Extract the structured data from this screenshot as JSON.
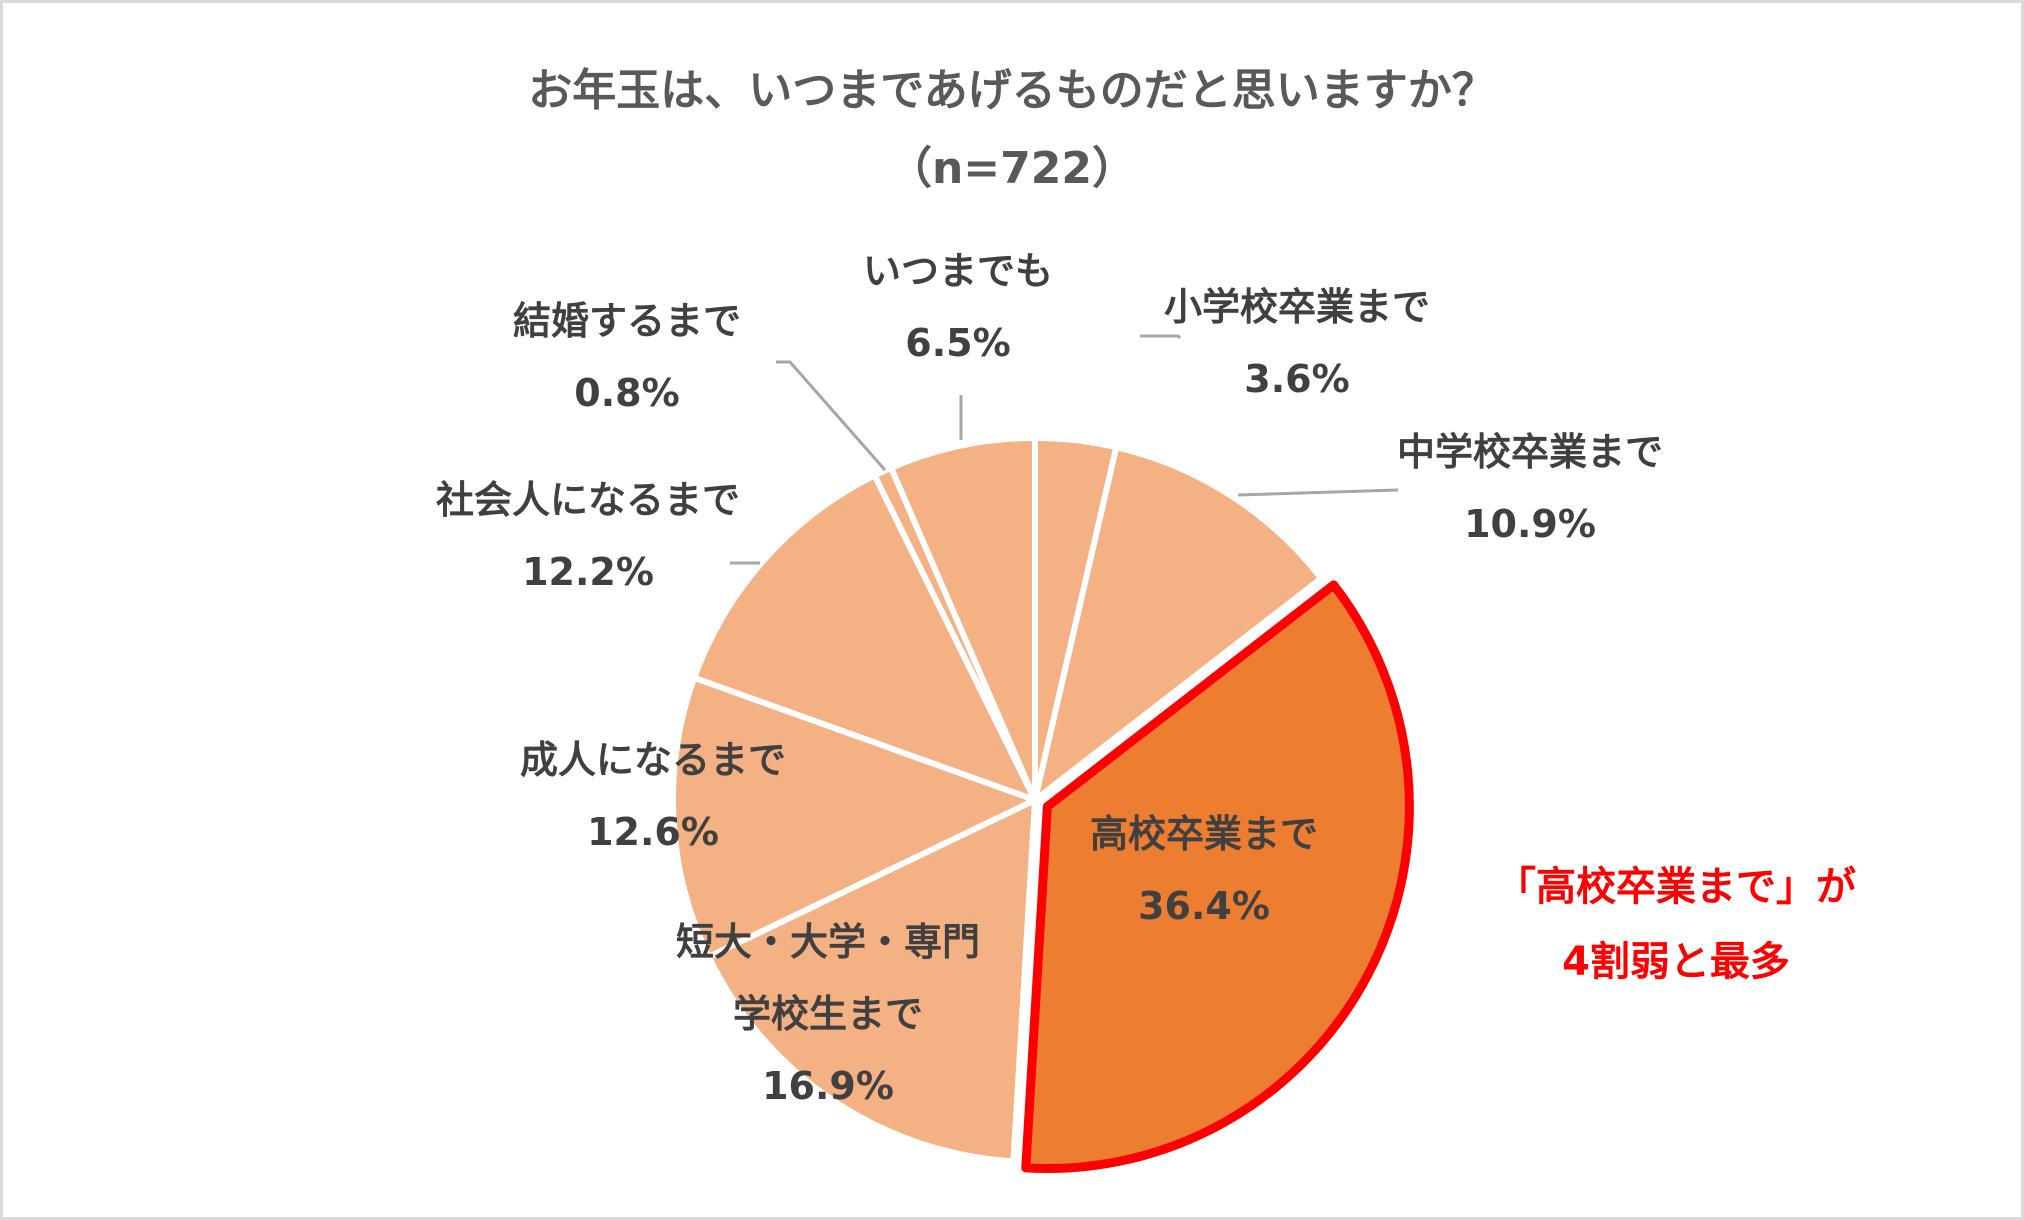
{
  "chart_data": {
    "type": "pie",
    "title": "お年玉は、いつまであげるものだと思いますか？",
    "subtitle": "（n=722）",
    "start_angle_deg": 0,
    "direction": "clockwise",
    "slices": [
      {
        "label_lines": [
          "小学校卒業まで"
        ],
        "value": 3.6,
        "pct_label": "3.6%"
      },
      {
        "label_lines": [
          "中学校卒業まで"
        ],
        "value": 10.9,
        "pct_label": "10.9%"
      },
      {
        "label_lines": [
          "高校卒業まで"
        ],
        "value": 36.4,
        "pct_label": "36.4%",
        "highlight": true
      },
      {
        "label_lines": [
          "短大・大学・専門",
          "学校生まで"
        ],
        "value": 16.9,
        "pct_label": "16.9%"
      },
      {
        "label_lines": [
          "成人になるまで"
        ],
        "value": 12.6,
        "pct_label": "12.6%"
      },
      {
        "label_lines": [
          "社会人になるまで"
        ],
        "value": 12.2,
        "pct_label": "12.2%"
      },
      {
        "label_lines": [
          "結婚するまで"
        ],
        "value": 0.8,
        "pct_label": "0.8%"
      },
      {
        "label_lines": [
          "いつまでも"
        ],
        "value": 6.5,
        "pct_label": "6.5%"
      }
    ],
    "colors": {
      "slice": "#f4b183",
      "highlight": "#ed7d31",
      "highlight_border": "#ff0000",
      "separator": "#ffffff",
      "leader": "#a6a6a6"
    },
    "annotation": {
      "lines": [
        "「高校卒業まで」が",
        "4割弱と最多"
      ],
      "color": "#ff0000"
    }
  }
}
